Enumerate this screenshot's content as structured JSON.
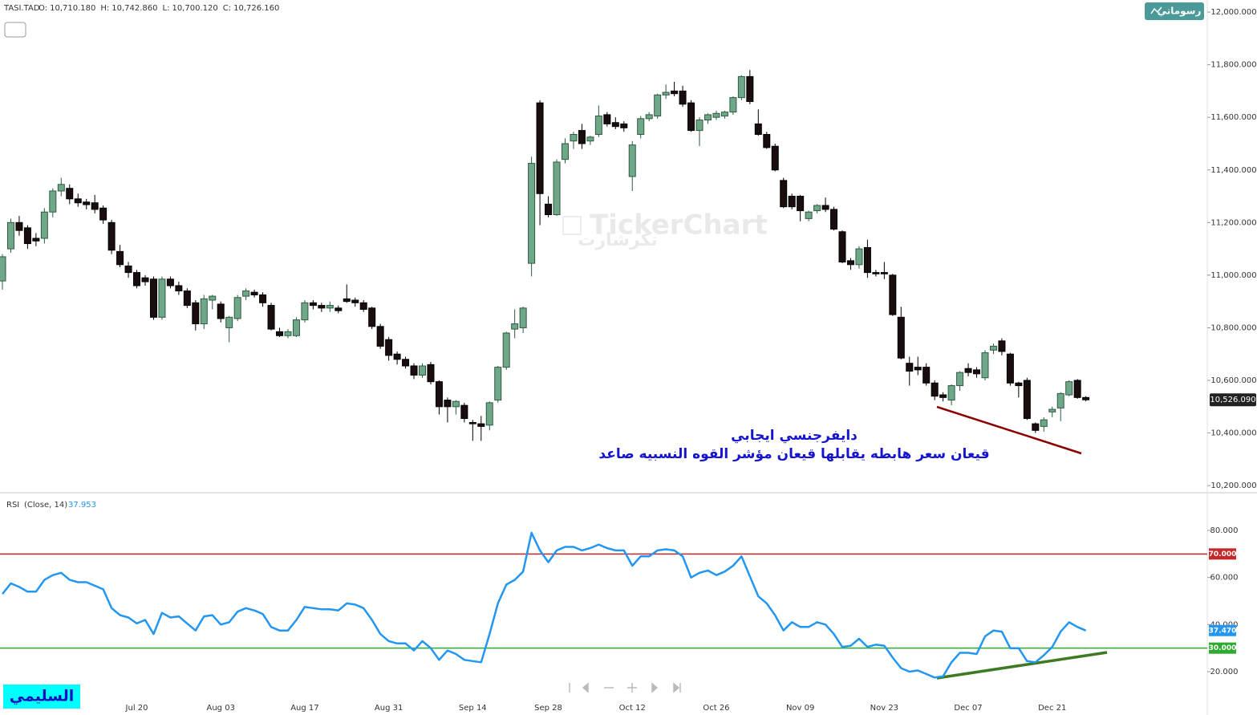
{
  "header": {
    "symbol": "TASI.TAD",
    "fields": [
      {
        "key": "O:",
        "value": "10,710.180"
      },
      {
        "key": "H:",
        "value": "10,742.860"
      },
      {
        "key": "L:",
        "value": "10,700.120"
      },
      {
        "key": "C:",
        "value": "10,726.160"
      }
    ]
  },
  "button": "رسوماتي",
  "watermark": {
    "latin": "TickerChart",
    "arabic": "تكرشارت"
  },
  "signature": "السليمي",
  "chart_data": [
    {
      "type": "candlestick",
      "up_color": "#6fa889",
      "up_border": "#2f5a41",
      "down_color": "#1a0d0d",
      "down_border": "#000000",
      "ylim": [
        10176,
        12046
      ],
      "yticks": [
        {
          "value": 10200,
          "label": "10,200.000"
        },
        {
          "value": 10400,
          "label": "10,400.000"
        },
        {
          "value": 10600,
          "label": "10,600.000"
        },
        {
          "value": 10800,
          "label": "10,800.000"
        },
        {
          "value": 11000,
          "label": "11,000.000"
        },
        {
          "value": 11200,
          "label": "11,200.000"
        },
        {
          "value": 11400,
          "label": "11,400.000"
        },
        {
          "value": 11600,
          "label": "11,600.000"
        },
        {
          "value": 11800,
          "label": "11,800.000"
        },
        {
          "value": 12000,
          "label": "12,000.000"
        }
      ],
      "marker": {
        "value": 10526.09,
        "label": "10,526.090"
      },
      "annotations": [
        "دايفرجنسي ايجابي",
        "قيعان سعر هابطه يقابلها قيعان مؤشر القوه النسبيه صاعد"
      ],
      "ohlc": [
        [
          10978,
          11080,
          10945,
          11070
        ],
        [
          11100,
          11215,
          11085,
          11200
        ],
        [
          11200,
          11225,
          11150,
          11170
        ],
        [
          11180,
          11190,
          11100,
          11120
        ],
        [
          11140,
          11160,
          11110,
          11130
        ],
        [
          11140,
          11255,
          11120,
          11240
        ],
        [
          11240,
          11330,
          11220,
          11320
        ],
        [
          11320,
          11370,
          11300,
          11345
        ],
        [
          11330,
          11345,
          11270,
          11290
        ],
        [
          11290,
          11310,
          11260,
          11275
        ],
        [
          11278,
          11290,
          11250,
          11268
        ],
        [
          11275,
          11305,
          11235,
          11250
        ],
        [
          11255,
          11265,
          11195,
          11210
        ],
        [
          11200,
          11210,
          11080,
          11095
        ],
        [
          11090,
          11115,
          11030,
          11040
        ],
        [
          11035,
          11050,
          10990,
          11010
        ],
        [
          11010,
          11020,
          10950,
          10960
        ],
        [
          10990,
          11000,
          10960,
          10975
        ],
        [
          10985,
          10995,
          10830,
          10840
        ],
        [
          10840,
          10995,
          10830,
          10985
        ],
        [
          10985,
          10995,
          10950,
          10960
        ],
        [
          10960,
          10975,
          10925,
          10940
        ],
        [
          10940,
          10950,
          10875,
          10885
        ],
        [
          10895,
          10905,
          10790,
          10815
        ],
        [
          10815,
          10925,
          10795,
          10910
        ],
        [
          10905,
          10925,
          10870,
          10920
        ],
        [
          10890,
          10900,
          10820,
          10835
        ],
        [
          10800,
          10845,
          10745,
          10840
        ],
        [
          10835,
          10925,
          10825,
          10915
        ],
        [
          10920,
          10950,
          10905,
          10940
        ],
        [
          10935,
          10945,
          10915,
          10925
        ],
        [
          10925,
          10935,
          10880,
          10895
        ],
        [
          10885,
          10895,
          10790,
          10795
        ],
        [
          10785,
          10800,
          10765,
          10770
        ],
        [
          10770,
          10795,
          10760,
          10785
        ],
        [
          10770,
          10840,
          10765,
          10830
        ],
        [
          10830,
          10905,
          10820,
          10895
        ],
        [
          10895,
          10905,
          10870,
          10885
        ],
        [
          10885,
          10895,
          10860,
          10875
        ],
        [
          10875,
          10900,
          10860,
          10885
        ],
        [
          10875,
          10885,
          10855,
          10865
        ],
        [
          10910,
          10965,
          10895,
          10900
        ],
        [
          10905,
          10915,
          10880,
          10895
        ],
        [
          10895,
          10905,
          10860,
          10870
        ],
        [
          10875,
          10880,
          10795,
          10805
        ],
        [
          10805,
          10815,
          10720,
          10730
        ],
        [
          10755,
          10765,
          10675,
          10695
        ],
        [
          10700,
          10710,
          10660,
          10680
        ],
        [
          10680,
          10690,
          10645,
          10655
        ],
        [
          10655,
          10665,
          10605,
          10620
        ],
        [
          10620,
          10665,
          10610,
          10655
        ],
        [
          10660,
          10670,
          10585,
          10595
        ],
        [
          10595,
          10600,
          10470,
          10500
        ],
        [
          10525,
          10535,
          10440,
          10500
        ],
        [
          10500,
          10525,
          10470,
          10520
        ],
        [
          10505,
          10515,
          10440,
          10455
        ],
        [
          10440,
          10450,
          10370,
          10435
        ],
        [
          10435,
          10465,
          10370,
          10425
        ],
        [
          10430,
          10520,
          10410,
          10515
        ],
        [
          10525,
          10655,
          10515,
          10650
        ],
        [
          10650,
          10785,
          10640,
          10780
        ],
        [
          10795,
          10870,
          10760,
          10815
        ],
        [
          10800,
          10880,
          10780,
          10875
        ],
        [
          11045,
          11450,
          10995,
          11425
        ],
        [
          11655,
          11665,
          11190,
          11310
        ],
        [
          11270,
          11300,
          11220,
          11230
        ],
        [
          11230,
          11440,
          11225,
          11430
        ],
        [
          11440,
          11520,
          11425,
          11500
        ],
        [
          11510,
          11545,
          11480,
          11535
        ],
        [
          11550,
          11575,
          11480,
          11500
        ],
        [
          11510,
          11530,
          11495,
          11525
        ],
        [
          11535,
          11645,
          11525,
          11605
        ],
        [
          11610,
          11620,
          11565,
          11575
        ],
        [
          11580,
          11600,
          11555,
          11565
        ],
        [
          11575,
          11585,
          11545,
          11560
        ],
        [
          11375,
          11510,
          11320,
          11495
        ],
        [
          11535,
          11605,
          11520,
          11595
        ],
        [
          11595,
          11620,
          11585,
          11610
        ],
        [
          11605,
          11690,
          11595,
          11685
        ],
        [
          11685,
          11725,
          11670,
          11695
        ],
        [
          11700,
          11735,
          11680,
          11690
        ],
        [
          11700,
          11720,
          11640,
          11650
        ],
        [
          11655,
          11665,
          11545,
          11550
        ],
        [
          11550,
          11600,
          11490,
          11590
        ],
        [
          11590,
          11615,
          11575,
          11610
        ],
        [
          11600,
          11625,
          11590,
          11615
        ],
        [
          11605,
          11625,
          11595,
          11620
        ],
        [
          11620,
          11680,
          11610,
          11675
        ],
        [
          11675,
          11760,
          11665,
          11755
        ],
        [
          11755,
          11780,
          11650,
          11660
        ],
        [
          11575,
          11630,
          11530,
          11535
        ],
        [
          11535,
          11545,
          11480,
          11485
        ],
        [
          11490,
          11500,
          11395,
          11400
        ],
        [
          11360,
          11370,
          11255,
          11260
        ],
        [
          11300,
          11310,
          11250,
          11260
        ],
        [
          11300,
          11305,
          11205,
          11245
        ],
        [
          11215,
          11245,
          11205,
          11240
        ],
        [
          11245,
          11270,
          11235,
          11265
        ],
        [
          11265,
          11295,
          11240,
          11250
        ],
        [
          11250,
          11260,
          11170,
          11175
        ],
        [
          11165,
          11170,
          11045,
          11050
        ],
        [
          11055,
          11065,
          11020,
          11040
        ],
        [
          11040,
          11110,
          11025,
          11100
        ],
        [
          11105,
          11135,
          10990,
          11010
        ],
        [
          11010,
          11020,
          10995,
          11005
        ],
        [
          11010,
          11050,
          10985,
          11005
        ],
        [
          11000,
          11005,
          10845,
          10850
        ],
        [
          10840,
          10880,
          10680,
          10685
        ],
        [
          10665,
          10690,
          10580,
          10635
        ],
        [
          10650,
          10690,
          10620,
          10640
        ],
        [
          10650,
          10665,
          10580,
          10590
        ],
        [
          10590,
          10600,
          10525,
          10540
        ],
        [
          10545,
          10555,
          10520,
          10535
        ],
        [
          10525,
          10585,
          10505,
          10580
        ],
        [
          10580,
          10635,
          10560,
          10630
        ],
        [
          10645,
          10665,
          10615,
          10630
        ],
        [
          10640,
          10650,
          10610,
          10625
        ],
        [
          10610,
          10715,
          10600,
          10705
        ],
        [
          10715,
          10740,
          10700,
          10730
        ],
        [
          10750,
          10760,
          10695,
          10710
        ],
        [
          10700,
          10705,
          10580,
          10590
        ],
        [
          10590,
          10595,
          10535,
          10580
        ],
        [
          10600,
          10610,
          10450,
          10455
        ],
        [
          10435,
          10440,
          10400,
          10410
        ],
        [
          10425,
          10460,
          10405,
          10450
        ],
        [
          10480,
          10500,
          10460,
          10490
        ],
        [
          10495,
          10555,
          10445,
          10550
        ],
        [
          10545,
          10600,
          10540,
          10595
        ],
        [
          10600,
          10605,
          10530,
          10535
        ],
        [
          10535,
          10540,
          10520,
          10526.09
        ]
      ]
    },
    {
      "type": "line",
      "title": "RSI",
      "subtitle": "(Close, 14)",
      "current": "37.953",
      "color": "#2196f3",
      "ylim": [
        8.75,
        95
      ],
      "yticks": [
        {
          "value": 20,
          "label": "20.000"
        },
        {
          "value": 40,
          "label": "40.000"
        },
        {
          "value": 60,
          "label": "60.000"
        },
        {
          "value": 80,
          "label": "80.000"
        }
      ],
      "levels": [
        {
          "value": 70,
          "label": "70.000",
          "color": "#c62828"
        },
        {
          "value": 30,
          "label": "30.000",
          "color": "#2eaa2e"
        }
      ],
      "marker": {
        "value": 37.47,
        "label": "37.470"
      },
      "categories": [
        null,
        null,
        null,
        null,
        null,
        null,
        null,
        null,
        null,
        null,
        null,
        null,
        null,
        null,
        null,
        null,
        "Jul 20",
        null,
        null,
        null,
        null,
        null,
        null,
        null,
        null,
        null,
        "Aug 03",
        null,
        null,
        null,
        null,
        null,
        null,
        null,
        null,
        null,
        "Aug 17",
        null,
        null,
        null,
        null,
        null,
        null,
        null,
        null,
        null,
        "Aug 31",
        null,
        null,
        null,
        null,
        null,
        null,
        null,
        null,
        null,
        "Sep 14",
        null,
        null,
        null,
        null,
        null,
        null,
        null,
        null,
        "Sep 28",
        null,
        null,
        null,
        null,
        null,
        null,
        null,
        null,
        null,
        "Oct 12",
        null,
        null,
        null,
        null,
        null,
        null,
        null,
        null,
        null,
        "Oct 26",
        null,
        null,
        null,
        null,
        null,
        null,
        null,
        null,
        null,
        "Nov 09",
        null,
        null,
        null,
        null,
        null,
        null,
        null,
        null,
        null,
        "Nov 23",
        null,
        null,
        null,
        null,
        null,
        null,
        null,
        null,
        null,
        "Dec 07",
        null,
        null,
        null,
        null,
        null,
        null,
        null,
        null,
        null,
        "Dec 21",
        null,
        null,
        null,
        null
      ],
      "values": [
        53,
        57.5,
        56,
        54,
        54,
        59,
        61,
        62,
        59,
        58,
        58,
        56.5,
        55,
        47,
        44,
        43,
        40.5,
        42,
        36,
        45,
        43,
        43.5,
        40.5,
        37.5,
        43.5,
        44,
        40,
        41,
        45.5,
        47,
        46,
        44.5,
        39,
        37.5,
        37.5,
        42,
        47.5,
        47,
        46.5,
        46.5,
        46,
        49,
        48.5,
        47,
        42,
        36,
        33,
        32,
        32,
        29,
        33,
        30,
        25,
        29,
        27.5,
        25,
        24.5,
        24,
        36,
        49,
        57,
        59,
        62.5,
        79,
        71.5,
        66.5,
        71.5,
        73,
        73,
        71.5,
        72.5,
        74,
        72.5,
        71.5,
        71.5,
        65,
        69,
        69,
        71.5,
        72,
        71.5,
        69,
        60,
        62,
        63,
        61,
        62.5,
        65,
        69,
        60.5,
        52,
        49,
        44,
        37.5,
        41,
        39,
        39,
        41,
        40,
        36,
        30.5,
        31,
        34,
        30.5,
        31.5,
        31,
        26,
        21.5,
        20,
        20.5,
        19,
        17.5,
        18,
        24,
        28,
        28,
        27.5,
        35,
        37.5,
        37,
        30,
        30,
        24.5,
        24,
        27,
        30.5,
        37,
        41,
        39,
        37.47
      ]
    }
  ]
}
